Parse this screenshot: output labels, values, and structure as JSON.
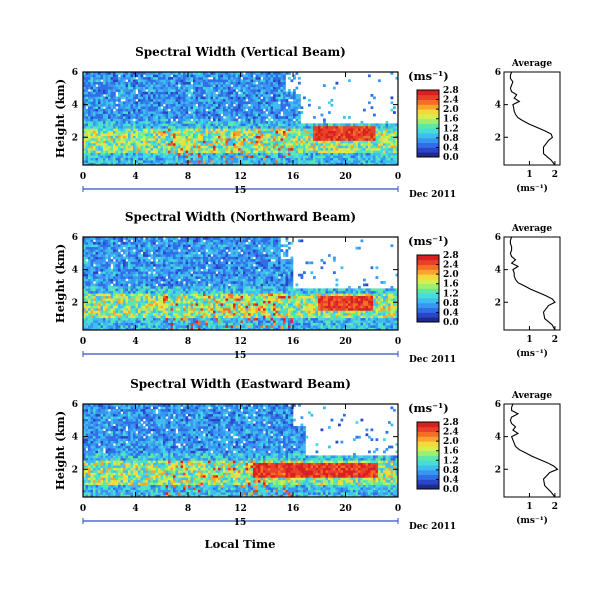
{
  "figure": {
    "x_axis_title": "Local Time",
    "date_label": "Dec 2011",
    "day_label": "15",
    "colorbar_unit": "(ms⁻¹)",
    "profile_title": "Average",
    "profile_xlabel": "(ms⁻¹)",
    "colorscale": [
      "#1e2a8c",
      "#2a46c8",
      "#2f6ee6",
      "#3996f0",
      "#3fbcf0",
      "#46dcd8",
      "#5ee8a8",
      "#9cef72",
      "#d6ee4e",
      "#f6d83a",
      "#f8a42e",
      "#f46e26",
      "#e8402a",
      "#d82020"
    ]
  },
  "chart_data": [
    {
      "type": "heatmap",
      "title": "Spectral Width (Vertical Beam)",
      "ylabel": "Height (km)",
      "xlabel": "Local Time",
      "xlim": [
        0,
        24
      ],
      "ylim": [
        0.3,
        6.0
      ],
      "x_ticks": [
        "0",
        "4",
        "8",
        "12",
        "16",
        "20",
        "0"
      ],
      "y_ticks": [
        "2",
        "4",
        "6"
      ],
      "colorbar": {
        "ticks": [
          "0.0",
          "0.4",
          "0.8",
          "1.2",
          "1.6",
          "2.0",
          "2.4",
          "2.8"
        ],
        "range": [
          0,
          2.8
        ]
      },
      "data_mask": {
        "upper_height_km": 6.0,
        "upper_clear_after_hour": 16.5,
        "top_clear_after_hour": 15.5,
        "hot_layer_height_km": 2.2,
        "hot_layer_start_hour": 17.5,
        "hot_layer_end_hour": 22.2
      },
      "profile": {
        "xlim": [
          0,
          2.2
        ],
        "x_ticks": [
          "1",
          "2"
        ],
        "y_ticks": [
          "2",
          "4",
          "6"
        ],
        "height_km": [
          0.3,
          0.6,
          1.0,
          1.4,
          1.8,
          2.0,
          2.2,
          2.4,
          2.6,
          2.8,
          3.0,
          3.2,
          3.4,
          3.6,
          3.8,
          4.0,
          4.2,
          4.4,
          4.6,
          4.8,
          5.0,
          5.2,
          5.4,
          5.6,
          5.8,
          6.0
        ],
        "width_ms": [
          2.0,
          1.85,
          1.55,
          1.55,
          1.75,
          1.9,
          1.85,
          1.6,
          1.3,
          1.0,
          0.75,
          0.55,
          0.45,
          0.4,
          0.38,
          0.35,
          0.6,
          0.4,
          0.5,
          0.3,
          0.25,
          0.3,
          0.35,
          0.25,
          0.25,
          0.3
        ]
      }
    },
    {
      "type": "heatmap",
      "title": "Spectral Width (Northward Beam)",
      "ylabel": "Height (km)",
      "xlabel": "Local Time",
      "xlim": [
        0,
        24
      ],
      "ylim": [
        0.3,
        6.0
      ],
      "x_ticks": [
        "0",
        "4",
        "8",
        "12",
        "16",
        "20",
        "0"
      ],
      "y_ticks": [
        "2",
        "4",
        "6"
      ],
      "colorbar": {
        "ticks": [
          "0.0",
          "0.4",
          "0.8",
          "1.2",
          "1.6",
          "2.0",
          "2.4",
          "2.8"
        ],
        "range": [
          0,
          2.8
        ]
      },
      "data_mask": {
        "upper_height_km": 6.0,
        "upper_clear_after_hour": 16.0,
        "top_clear_after_hour": 15.0,
        "hot_layer_height_km": 2.0,
        "hot_layer_start_hour": 18.0,
        "hot_layer_end_hour": 22.0
      },
      "profile": {
        "xlim": [
          0,
          2.2
        ],
        "x_ticks": [
          "1",
          "2"
        ],
        "y_ticks": [
          "2",
          "4",
          "6"
        ],
        "height_km": [
          0.3,
          0.6,
          1.0,
          1.4,
          1.8,
          2.0,
          2.2,
          2.4,
          2.6,
          2.8,
          3.0,
          3.2,
          3.4,
          3.6,
          3.8,
          4.0,
          4.2,
          4.4,
          4.6,
          4.8,
          5.0,
          5.2,
          5.4,
          5.6,
          5.8,
          6.0
        ],
        "width_ms": [
          2.0,
          1.9,
          1.6,
          1.55,
          1.75,
          2.0,
          1.9,
          1.65,
          1.35,
          1.05,
          0.8,
          0.55,
          0.45,
          0.4,
          0.4,
          0.35,
          0.55,
          0.3,
          0.45,
          0.3,
          0.25,
          0.3,
          0.3,
          0.25,
          0.25,
          0.3
        ]
      }
    },
    {
      "type": "heatmap",
      "title": "Spectral Width (Eastward Beam)",
      "ylabel": "Height (km)",
      "xlabel": "Local Time",
      "xlim": [
        0,
        24
      ],
      "ylim": [
        0.3,
        6.0
      ],
      "x_ticks": [
        "0",
        "4",
        "8",
        "12",
        "16",
        "20",
        "0"
      ],
      "y_ticks": [
        "2",
        "4",
        "6"
      ],
      "colorbar": {
        "ticks": [
          "0.0",
          "0.4",
          "0.8",
          "1.2",
          "1.6",
          "2.0",
          "2.4",
          "2.8"
        ],
        "range": [
          0,
          2.8
        ]
      },
      "data_mask": {
        "upper_height_km": 6.0,
        "upper_clear_after_hour": 17.0,
        "top_clear_after_hour": 16.0,
        "hot_layer_height_km": 2.0,
        "hot_layer_start_hour": 13.0,
        "hot_layer_end_hour": 22.5
      },
      "profile": {
        "xlim": [
          0,
          2.2
        ],
        "x_ticks": [
          "1",
          "2"
        ],
        "y_ticks": [
          "2",
          "4",
          "6"
        ],
        "height_km": [
          0.3,
          0.6,
          1.0,
          1.4,
          1.8,
          2.0,
          2.2,
          2.4,
          2.6,
          2.8,
          3.0,
          3.2,
          3.4,
          3.6,
          3.8,
          4.0,
          4.2,
          4.4,
          4.6,
          4.8,
          5.0,
          5.2,
          5.4,
          5.6,
          5.8,
          6.0
        ],
        "width_ms": [
          2.0,
          1.85,
          1.6,
          1.55,
          1.8,
          2.1,
          1.95,
          1.7,
          1.4,
          1.1,
          0.85,
          0.6,
          0.45,
          0.4,
          0.35,
          0.3,
          0.55,
          0.35,
          0.45,
          0.3,
          0.25,
          0.3,
          0.55,
          0.3,
          0.3,
          0.35
        ]
      }
    }
  ]
}
